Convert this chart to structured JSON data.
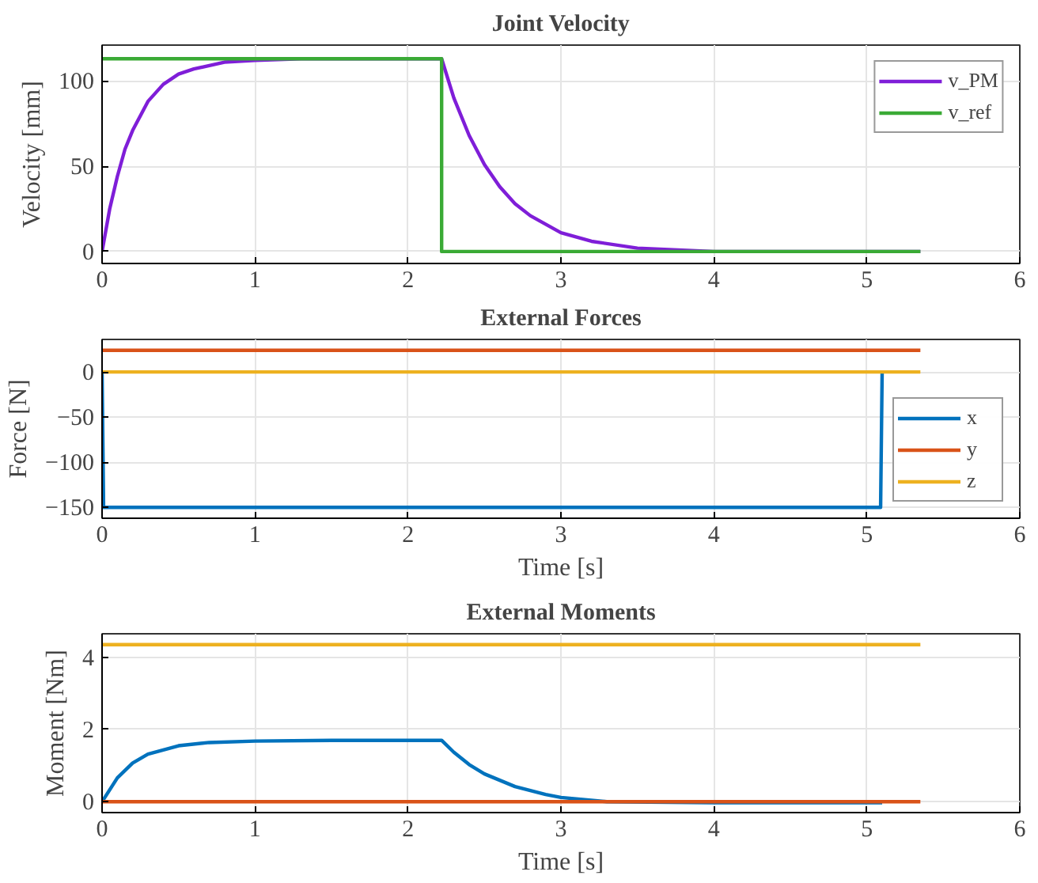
{
  "chart_data": [
    {
      "type": "line",
      "title": "Joint Velocity",
      "ylabel": "Velocity [mm]",
      "xlim": [
        0,
        6
      ],
      "ylim": [
        -7,
        121
      ],
      "xticks": [
        0,
        1,
        2,
        3,
        4,
        5,
        6
      ],
      "yticks": [
        0,
        50,
        100
      ],
      "grid": true,
      "legend": "top right",
      "series": [
        {
          "name": "v_PM",
          "color": "#7f1ed8",
          "x": [
            0,
            0.05,
            0.1,
            0.15,
            0.2,
            0.3,
            0.4,
            0.5,
            0.6,
            0.8,
            1.0,
            1.3,
            2.22,
            2.3,
            2.4,
            2.5,
            2.6,
            2.7,
            2.8,
            3.0,
            3.2,
            3.5,
            4,
            5.35
          ],
          "values": [
            0,
            25,
            44,
            60,
            71,
            88,
            98,
            104,
            107,
            111,
            112,
            113,
            113,
            90,
            68,
            51,
            38,
            28,
            21,
            11,
            6,
            2,
            0,
            0
          ]
        },
        {
          "name": "v_ref",
          "color": "#3aaa35",
          "x": [
            0,
            2.22,
            2.22,
            5.35
          ],
          "values": [
            113,
            113,
            0,
            0
          ]
        }
      ]
    },
    {
      "type": "line",
      "title": "External Forces",
      "xlabel": "Time [s]",
      "ylabel": "Force [N]",
      "xlim": [
        0,
        6
      ],
      "ylim": [
        -162,
        36
      ],
      "xticks": [
        0,
        1,
        2,
        3,
        4,
        5,
        6
      ],
      "yticks": [
        -150,
        -100,
        -50,
        0
      ],
      "grid": true,
      "legend": "bottom right",
      "series": [
        {
          "name": "x",
          "color": "#0072bd",
          "x": [
            0,
            0.01,
            5.09,
            5.1
          ],
          "values": [
            0,
            -150,
            -150,
            0
          ]
        },
        {
          "name": "y",
          "color": "#d95319",
          "x": [
            0,
            5.35
          ],
          "values": [
            24,
            24
          ]
        },
        {
          "name": "z",
          "color": "#edb120",
          "x": [
            0,
            5.35
          ],
          "values": [
            0,
            0
          ]
        }
      ]
    },
    {
      "type": "line",
      "title": "External Moments",
      "xlabel": "Time [s]",
      "ylabel": "Moment [Nm]",
      "xlim": [
        0,
        6
      ],
      "ylim": [
        -0.3,
        4.65
      ],
      "xticks": [
        0,
        1,
        2,
        3,
        4,
        5,
        6
      ],
      "yticks": [
        0,
        2,
        4
      ],
      "grid": true,
      "series": [
        {
          "color": "#0072bd",
          "x": [
            0,
            0.1,
            0.2,
            0.3,
            0.5,
            0.7,
            1.0,
            1.5,
            2.22,
            2.3,
            2.4,
            2.5,
            2.7,
            2.9,
            3.0,
            3.3,
            4,
            5.1
          ],
          "values": [
            0,
            0.66,
            1.07,
            1.32,
            1.55,
            1.64,
            1.68,
            1.7,
            1.7,
            1.37,
            1.03,
            0.77,
            0.42,
            0.2,
            0.12,
            0.0,
            -0.03,
            -0.03
          ]
        },
        {
          "color": "#d95319",
          "x": [
            0,
            5.35
          ],
          "values": [
            0,
            0
          ]
        },
        {
          "color": "#edb120",
          "x": [
            0,
            5.35
          ],
          "values": [
            4.35,
            4.35
          ]
        }
      ]
    }
  ]
}
